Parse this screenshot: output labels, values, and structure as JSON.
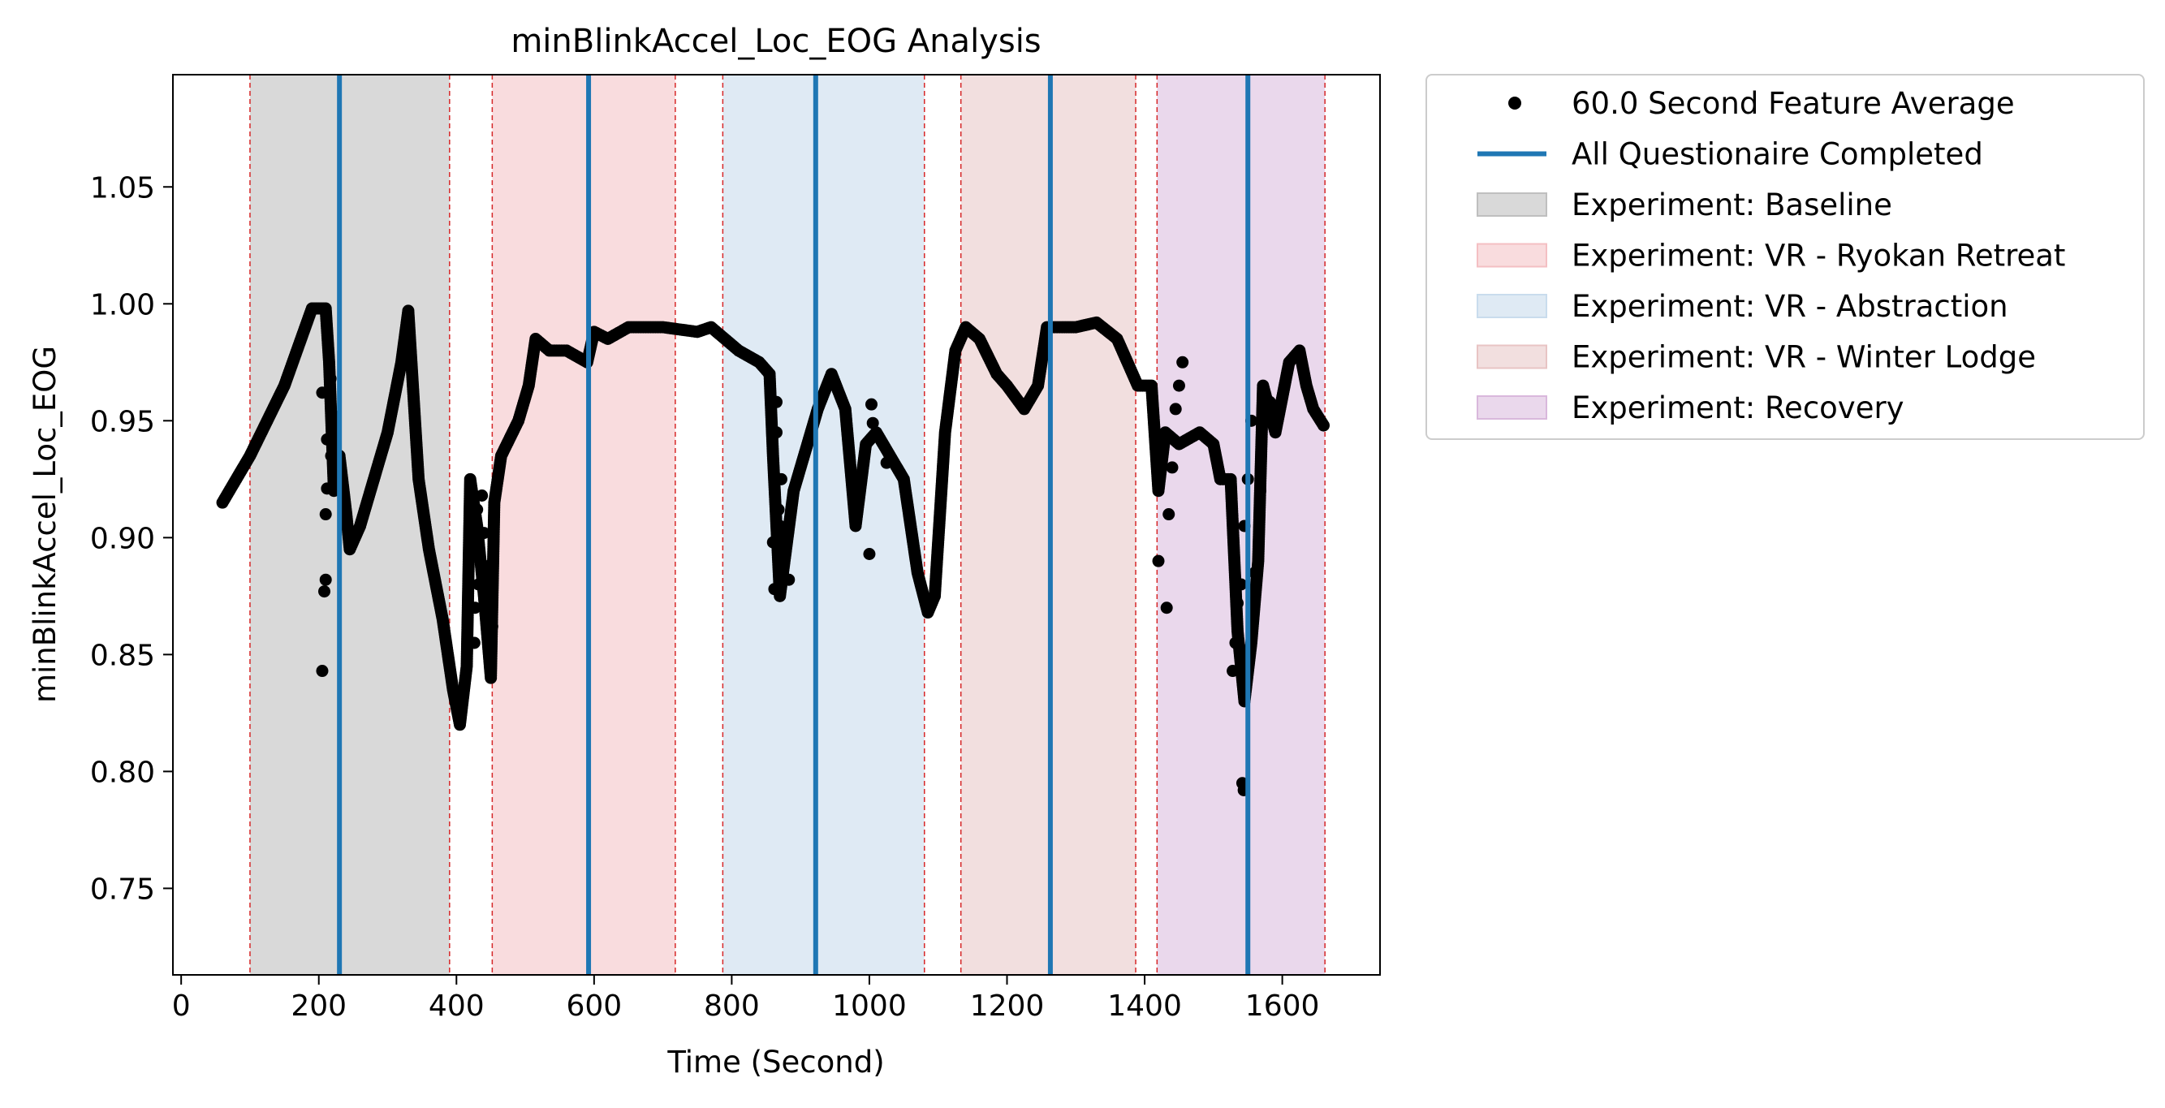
{
  "chart_data": {
    "type": "scatter",
    "title": "minBlinkAccel_Loc_EOG Analysis",
    "xlabel": "Time (Second)",
    "ylabel": "minBlinkAccel_Loc_EOG",
    "xlim": [
      -12,
      1742
    ],
    "ylim": [
      0.713,
      1.098
    ],
    "xticks": [
      0,
      200,
      400,
      600,
      800,
      1000,
      1200,
      1400,
      1600
    ],
    "yticks": [
      0.75,
      0.8,
      0.85,
      0.9,
      0.95,
      1.0,
      1.05
    ],
    "xtick_labels": [
      "0",
      "200",
      "400",
      "600",
      "800",
      "1000",
      "1200",
      "1400",
      "1600"
    ],
    "ytick_labels": [
      "0.75",
      "0.80",
      "0.85",
      "0.90",
      "0.95",
      "1.00",
      "1.05"
    ],
    "grid": false,
    "legend_placement": "outside-upper-right",
    "series": [
      {
        "name": "60.0 Second Feature Average",
        "kind": "points",
        "color": "#000000",
        "path": [
          [
            60,
            0.915
          ],
          [
            100,
            0.935
          ],
          [
            150,
            0.965
          ],
          [
            190,
            0.998
          ],
          [
            210,
            0.998
          ],
          [
            215,
            0.975
          ],
          [
            222,
            0.92
          ],
          [
            230,
            0.935
          ],
          [
            240,
            0.91
          ],
          [
            245,
            0.895
          ],
          [
            260,
            0.905
          ],
          [
            280,
            0.925
          ],
          [
            300,
            0.945
          ],
          [
            320,
            0.975
          ],
          [
            330,
            0.997
          ],
          [
            345,
            0.925
          ],
          [
            360,
            0.895
          ],
          [
            380,
            0.865
          ],
          [
            395,
            0.835
          ],
          [
            405,
            0.82
          ],
          [
            415,
            0.845
          ],
          [
            420,
            0.925
          ],
          [
            430,
            0.905
          ],
          [
            440,
            0.875
          ],
          [
            450,
            0.84
          ],
          [
            455,
            0.915
          ],
          [
            465,
            0.935
          ],
          [
            490,
            0.95
          ],
          [
            505,
            0.965
          ],
          [
            515,
            0.985
          ],
          [
            535,
            0.98
          ],
          [
            560,
            0.98
          ],
          [
            590,
            0.975
          ],
          [
            600,
            0.988
          ],
          [
            620,
            0.985
          ],
          [
            650,
            0.99
          ],
          [
            700,
            0.99
          ],
          [
            750,
            0.988
          ],
          [
            770,
            0.99
          ],
          [
            790,
            0.985
          ],
          [
            810,
            0.98
          ],
          [
            840,
            0.975
          ],
          [
            855,
            0.97
          ],
          [
            860,
            0.935
          ],
          [
            870,
            0.875
          ],
          [
            890,
            0.92
          ],
          [
            905,
            0.935
          ],
          [
            925,
            0.955
          ],
          [
            945,
            0.97
          ],
          [
            965,
            0.955
          ],
          [
            980,
            0.905
          ],
          [
            995,
            0.94
          ],
          [
            1010,
            0.945
          ],
          [
            1030,
            0.935
          ],
          [
            1050,
            0.925
          ],
          [
            1070,
            0.885
          ],
          [
            1085,
            0.868
          ],
          [
            1095,
            0.875
          ],
          [
            1110,
            0.945
          ],
          [
            1125,
            0.98
          ],
          [
            1140,
            0.99
          ],
          [
            1160,
            0.985
          ],
          [
            1185,
            0.97
          ],
          [
            1200,
            0.965
          ],
          [
            1225,
            0.955
          ],
          [
            1245,
            0.965
          ],
          [
            1258,
            0.99
          ],
          [
            1280,
            0.99
          ],
          [
            1300,
            0.99
          ],
          [
            1330,
            0.992
          ],
          [
            1360,
            0.985
          ],
          [
            1390,
            0.965
          ],
          [
            1410,
            0.965
          ],
          [
            1420,
            0.92
          ],
          [
            1430,
            0.945
          ],
          [
            1450,
            0.94
          ],
          [
            1480,
            0.945
          ],
          [
            1500,
            0.94
          ],
          [
            1510,
            0.925
          ],
          [
            1525,
            0.925
          ],
          [
            1535,
            0.86
          ],
          [
            1545,
            0.83
          ],
          [
            1555,
            0.855
          ],
          [
            1565,
            0.89
          ],
          [
            1572,
            0.965
          ],
          [
            1590,
            0.945
          ],
          [
            1610,
            0.975
          ],
          [
            1625,
            0.98
          ],
          [
            1635,
            0.965
          ],
          [
            1645,
            0.955
          ],
          [
            1660,
            0.948
          ]
        ],
        "scatter_points": [
          [
            205,
            0.843
          ],
          [
            208,
            0.877
          ],
          [
            210,
            0.882
          ],
          [
            210,
            0.91
          ],
          [
            212,
            0.921
          ],
          [
            205,
            0.962
          ],
          [
            212,
            0.942
          ],
          [
            217,
            0.968
          ],
          [
            222,
            0.952
          ],
          [
            218,
            0.935
          ],
          [
            440,
            0.902
          ],
          [
            445,
            0.878
          ],
          [
            452,
            0.862
          ],
          [
            448,
            0.888
          ],
          [
            432,
            0.88
          ],
          [
            426,
            0.855
          ],
          [
            427,
            0.87
          ],
          [
            430,
            0.912
          ],
          [
            437,
            0.918
          ],
          [
            860,
            0.898
          ],
          [
            862,
            0.878
          ],
          [
            868,
            0.912
          ],
          [
            872,
            0.925
          ],
          [
            865,
            0.958
          ],
          [
            865,
            0.945
          ],
          [
            870,
            0.905
          ],
          [
            877,
            0.895
          ],
          [
            883,
            0.882
          ],
          [
            1000,
            0.893
          ],
          [
            1003,
            0.957
          ],
          [
            1005,
            0.949
          ],
          [
            1025,
            0.932
          ],
          [
            1420,
            0.89
          ],
          [
            1432,
            0.87
          ],
          [
            1435,
            0.91
          ],
          [
            1440,
            0.93
          ],
          [
            1445,
            0.955
          ],
          [
            1450,
            0.965
          ],
          [
            1455,
            0.975
          ],
          [
            1528,
            0.843
          ],
          [
            1532,
            0.855
          ],
          [
            1535,
            0.872
          ],
          [
            1540,
            0.88
          ],
          [
            1545,
            0.905
          ],
          [
            1550,
            0.925
          ],
          [
            1555,
            0.95
          ],
          [
            1542,
            0.795
          ],
          [
            1544,
            0.792
          ],
          [
            1560,
            0.885
          ],
          [
            1568,
            0.92
          ],
          [
            1575,
            0.955
          ],
          [
            1582,
            0.958
          ]
        ]
      },
      {
        "name": "All Questionaire Completed",
        "kind": "vlines",
        "color": "#1f77b4",
        "x": [
          230,
          592,
          922,
          1263,
          1550
        ]
      }
    ],
    "regions": [
      {
        "name": "Experiment: Baseline",
        "x0": 100,
        "x1": 390,
        "color": "#bfbfbf",
        "opacity": 0.6
      },
      {
        "name": "Experiment: VR - Ryokan Retreat",
        "x0": 452,
        "x1": 718,
        "color": "#f4bfc3",
        "opacity": 0.55
      },
      {
        "name": "Experiment: VR - Abstraction",
        "x0": 787,
        "x1": 1080,
        "color": "#c9dced",
        "opacity": 0.6
      },
      {
        "name": "Experiment: VR - Winter Lodge",
        "x0": 1133,
        "x1": 1387,
        "color": "#e8c4c4",
        "opacity": 0.55
      },
      {
        "name": "Experiment: Recovery",
        "x0": 1418,
        "x1": 1662,
        "color": "#d9b8dc",
        "opacity": 0.55
      }
    ],
    "boundary_lines": {
      "color": "#d62728",
      "x": [
        100,
        390,
        452,
        718,
        787,
        1080,
        1133,
        1387,
        1418,
        1662
      ]
    },
    "legend": [
      "60.0 Second Feature Average",
      "All Questionaire Completed",
      "Experiment: Baseline",
      "Experiment: VR - Ryokan Retreat",
      "Experiment: VR - Abstraction",
      "Experiment: VR - Winter Lodge",
      "Experiment: Recovery"
    ]
  }
}
